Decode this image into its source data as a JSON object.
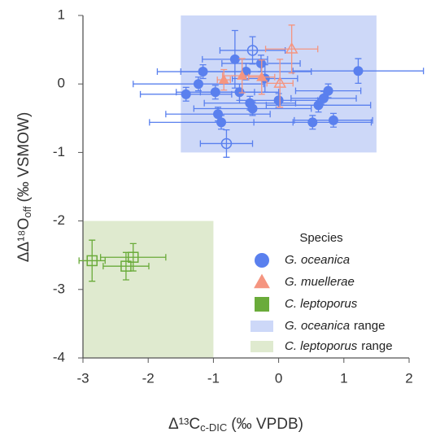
{
  "chart_data": {
    "type": "scatter",
    "x_label": {
      "main": "Δ¹³C",
      "sub": "c-DIC",
      "unit": "(‰ VPDB)"
    },
    "y_label": {
      "main": "ΔΔ¹⁸O",
      "sub": "off",
      "unit": "(‰ VSMOW)"
    },
    "xlim": [
      -3,
      2
    ],
    "ylim": [
      -4,
      1
    ],
    "xticks": [
      -3,
      -2,
      -1,
      0,
      1,
      2
    ],
    "yticks": [
      -4,
      -3,
      -2,
      -1,
      0,
      1
    ],
    "legend_title": "Species",
    "legend_position": "lower right",
    "ranges": [
      {
        "species": "G. oceanica",
        "label": "range",
        "color": "#cdd8f8",
        "x": [
          -1.5,
          1.5
        ],
        "y": [
          -1,
          1
        ]
      },
      {
        "species": "C. leptoporus",
        "label": "range",
        "color": "#dfeacf",
        "x": [
          -3,
          -1
        ],
        "y": [
          -4,
          -2
        ]
      }
    ],
    "series": [
      {
        "name": "G. oceanica",
        "marker": "circle",
        "color": "#5a80ee",
        "x": [
          -1.16,
          -1.23,
          -1.42,
          -0.97,
          -0.88,
          -0.93,
          -0.67,
          -0.6,
          -0.5,
          -0.44,
          -0.4,
          -0.27,
          -0.21,
          0.0,
          -0.8,
          -0.4,
          0.52,
          0.84,
          0.76,
          0.69,
          0.61,
          1.22
        ],
        "y": [
          0.18,
          0.0,
          -0.15,
          -0.12,
          -0.56,
          -0.44,
          0.36,
          -0.12,
          0.18,
          -0.28,
          -0.36,
          0.3,
          0.08,
          -0.24,
          -0.87,
          0.49,
          -0.56,
          -0.53,
          -0.1,
          -0.21,
          -0.31,
          0.19
        ],
        "xerr": [
          0.7,
          1.0,
          0.7,
          0.6,
          1.1,
          0.8,
          0.5,
          0.6,
          1.0,
          0.7,
          0.9,
          0.6,
          0.5,
          0.6,
          0.4,
          0.5,
          0.9,
          0.6,
          0.5,
          0.5,
          0.8,
          1.0
        ],
        "yerr": [
          0.1,
          0.1,
          0.1,
          0.1,
          0.1,
          0.1,
          0.42,
          0.12,
          0.12,
          0.1,
          0.1,
          0.12,
          0.2,
          0.1,
          0.2,
          0.2,
          0.1,
          0.1,
          0.1,
          0.1,
          0.1,
          0.18
        ],
        "hollow": [
          false,
          false,
          false,
          false,
          false,
          false,
          false,
          false,
          false,
          false,
          false,
          false,
          false,
          false,
          true,
          true,
          false,
          false,
          false,
          false,
          false,
          false
        ]
      },
      {
        "name": "G. muellerae",
        "marker": "triangle",
        "color": "#f59580",
        "x": [
          0.2,
          0.02,
          -0.26,
          -0.56,
          -0.84
        ],
        "y": [
          0.51,
          0.01,
          0.1,
          0.12,
          0.06
        ],
        "xerr": [
          0.4,
          0.2,
          0.2,
          0.3,
          0.1
        ],
        "yerr": [
          0.35,
          0.35,
          0.25,
          0.25,
          0.15
        ],
        "hollow": [
          true,
          true,
          false,
          false,
          false
        ]
      },
      {
        "name": "C. leptoporus",
        "marker": "square",
        "color": "#6aab3a",
        "x": [
          -2.86,
          -2.34,
          -2.23
        ],
        "y": [
          -2.58,
          -2.66,
          -2.53
        ],
        "xerr": [
          0.2,
          0.35,
          0.5
        ],
        "yerr": [
          0.3,
          0.2,
          0.2
        ],
        "hollow": [
          true,
          true,
          true
        ]
      }
    ]
  }
}
